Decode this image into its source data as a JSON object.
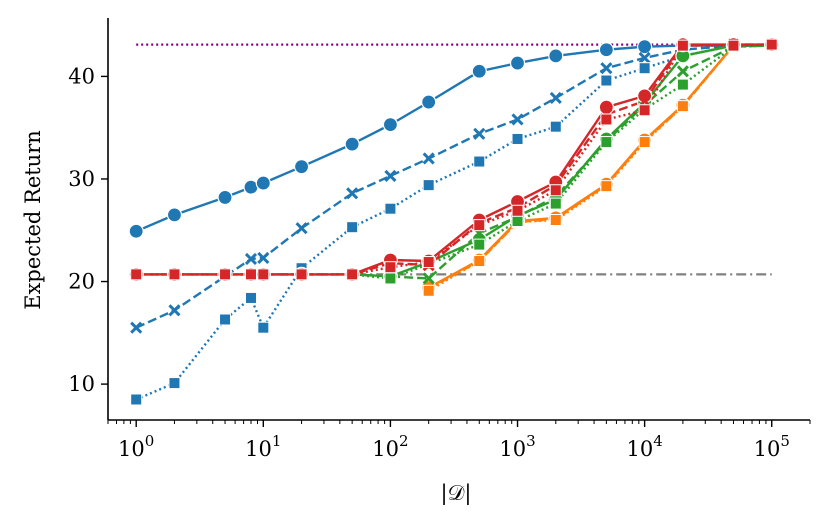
{
  "chart_data": {
    "type": "line",
    "title": "",
    "xlabel": "|𝒟|",
    "ylabel": "Expected Return",
    "xscale": "log",
    "xlim": [
      0.6,
      200000
    ],
    "ylim": [
      6.5,
      45.5
    ],
    "xticks": [
      {
        "value": 1,
        "base": "10",
        "exp": "0"
      },
      {
        "value": 10,
        "base": "10",
        "exp": "1"
      },
      {
        "value": 100,
        "base": "10",
        "exp": "2"
      },
      {
        "value": 1000,
        "base": "10",
        "exp": "3"
      },
      {
        "value": 10000,
        "base": "10",
        "exp": "4"
      },
      {
        "value": 100000,
        "base": "10",
        "exp": "5"
      }
    ],
    "yticks": [
      {
        "value": 10,
        "label": "10"
      },
      {
        "value": 20,
        "label": "20"
      },
      {
        "value": 30,
        "label": "30"
      },
      {
        "value": 40,
        "label": "40"
      }
    ],
    "grid": false,
    "legend": "none",
    "colors": {
      "blue": "#1f77b4",
      "orange": "#ff7f0e",
      "green": "#2ca02c",
      "red": "#d62728",
      "purple": "#800080",
      "gray": "#808080"
    },
    "x": [
      1,
      2,
      5,
      8,
      10,
      20,
      50,
      100,
      200,
      500,
      1000,
      2000,
      5000,
      10000,
      20000,
      50000,
      100000
    ],
    "reference_lines": [
      {
        "name": "optimal",
        "y": 43.1,
        "color": "#800080",
        "dash": "dotted"
      },
      {
        "name": "baseline",
        "y": 20.7,
        "color": "#808080",
        "dash": "dashdot"
      }
    ],
    "series": [
      {
        "name": "blue-circle-solid",
        "color": "#1f77b4",
        "marker": "circle",
        "dash": "solid",
        "values": [
          24.9,
          26.5,
          28.2,
          29.2,
          29.6,
          31.2,
          33.4,
          35.3,
          37.5,
          40.5,
          41.3,
          42.0,
          42.6,
          42.9,
          43.0,
          43.0,
          43.0
        ]
      },
      {
        "name": "blue-x-dashed",
        "color": "#1f77b4",
        "marker": "x",
        "dash": "dashed",
        "values": [
          15.5,
          17.2,
          null,
          22.2,
          22.3,
          25.2,
          28.6,
          30.3,
          32.0,
          34.4,
          35.8,
          37.9,
          40.8,
          41.8,
          42.6,
          43.0,
          43.0
        ]
      },
      {
        "name": "blue-square-dotted",
        "color": "#1f77b4",
        "marker": "square",
        "dash": "dotted",
        "values": [
          8.5,
          10.1,
          16.3,
          18.4,
          15.5,
          21.3,
          25.3,
          27.1,
          29.4,
          31.7,
          33.9,
          35.1,
          39.6,
          40.8,
          42.0,
          43.0,
          43.0
        ]
      },
      {
        "name": "orange-circle-solid",
        "color": "#ff7f0e",
        "marker": "circle",
        "dash": "solid",
        "values": [
          null,
          null,
          null,
          null,
          null,
          null,
          null,
          null,
          19.4,
          22.1,
          25.9,
          26.2,
          29.5,
          33.8,
          37.2,
          43.0,
          43.1
        ]
      },
      {
        "name": "orange-x-dashed",
        "color": "#ff7f0e",
        "marker": "x",
        "dash": "dashed",
        "values": [
          null,
          null,
          null,
          null,
          null,
          null,
          null,
          null,
          19.3,
          22.0,
          25.8,
          26.1,
          29.4,
          33.7,
          37.1,
          43.0,
          43.1
        ]
      },
      {
        "name": "orange-square-dotted",
        "color": "#ff7f0e",
        "marker": "square",
        "dash": "dotted",
        "values": [
          null,
          null,
          null,
          null,
          null,
          null,
          null,
          null,
          19.1,
          22.0,
          25.8,
          26.0,
          29.3,
          33.6,
          37.1,
          43.0,
          43.1
        ]
      },
      {
        "name": "green-circle-solid",
        "color": "#2ca02c",
        "marker": "circle",
        "dash": "solid",
        "values": [
          null,
          null,
          null,
          null,
          null,
          null,
          20.7,
          20.5,
          21.9,
          24.1,
          26.4,
          28.0,
          33.9,
          37.4,
          42.0,
          43.0,
          43.0
        ]
      },
      {
        "name": "green-x-dashed",
        "color": "#2ca02c",
        "marker": "x",
        "dash": "dashed",
        "values": [
          null,
          null,
          null,
          null,
          null,
          null,
          20.7,
          20.5,
          20.3,
          24.7,
          26.3,
          28.3,
          33.7,
          37.2,
          40.5,
          42.9,
          43.0
        ]
      },
      {
        "name": "green-square-dotted",
        "color": "#2ca02c",
        "marker": "square",
        "dash": "dotted",
        "values": [
          null,
          null,
          null,
          null,
          null,
          null,
          20.7,
          20.3,
          21.7,
          23.6,
          25.9,
          27.6,
          33.6,
          36.8,
          39.2,
          42.9,
          43.0
        ]
      },
      {
        "name": "red-circle-solid",
        "color": "#d62728",
        "marker": "circle",
        "dash": "solid",
        "values": [
          20.7,
          20.7,
          20.7,
          20.7,
          20.7,
          20.7,
          20.7,
          22.1,
          22.0,
          26.0,
          27.8,
          29.7,
          37.0,
          38.1,
          43.1,
          43.1,
          43.1
        ]
      },
      {
        "name": "red-x-dashed",
        "color": "#d62728",
        "marker": "x",
        "dash": "dashed",
        "values": [
          20.7,
          20.7,
          20.7,
          20.7,
          20.7,
          20.7,
          20.7,
          21.8,
          21.6,
          25.7,
          27.2,
          29.4,
          36.3,
          37.6,
          43.0,
          43.1,
          43.1
        ]
      },
      {
        "name": "red-square-dotted",
        "color": "#d62728",
        "marker": "square",
        "dash": "dotted",
        "values": [
          20.7,
          20.7,
          20.7,
          20.7,
          20.7,
          20.7,
          20.7,
          21.4,
          21.9,
          25.5,
          26.9,
          28.9,
          35.8,
          36.7,
          43.0,
          43.0,
          43.1
        ]
      }
    ]
  }
}
